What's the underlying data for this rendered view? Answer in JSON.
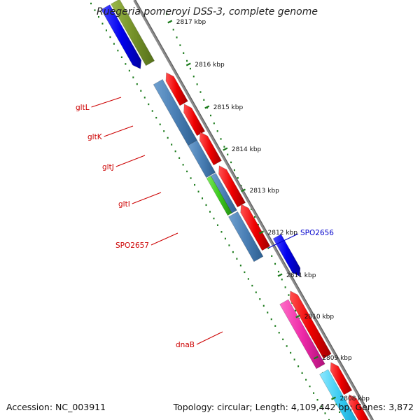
{
  "title": "Ruegeria pomeroyi DSS-3, complete genome",
  "footer": {
    "accession": "Accession: NC_003911",
    "summary": "Topology: circular; Length: 4,109,442 bp; Genes: 3,872"
  },
  "colors": {
    "backbone": "#7f7f7f",
    "tick": "#1a7a1a",
    "reverse_label": "#cc0000",
    "forward_label": "#0000cc"
  },
  "scale_ticks": [
    "2817 kbp",
    "2816 kbp",
    "2815 kbp",
    "2814 kbp",
    "2813 kbp",
    "2812 kbp",
    "2811 kbp",
    "2810 kbp",
    "2809 kbp",
    "2808 kbp"
  ],
  "genes": [
    {
      "name": "gltL",
      "color": "#cc0000",
      "strand": "reverse"
    },
    {
      "name": "gltK",
      "color": "#cc0000",
      "strand": "reverse"
    },
    {
      "name": "gltJ",
      "color": "#cc0000",
      "strand": "reverse"
    },
    {
      "name": "gltI",
      "color": "#cc0000",
      "strand": "reverse"
    },
    {
      "name": "SPO2657",
      "color": "#cc0000",
      "strand": "reverse"
    },
    {
      "name": "dnaB",
      "color": "#cc0000",
      "strand": "reverse"
    },
    {
      "name": "SPO2656",
      "color": "#0000cc",
      "strand": "forward"
    }
  ]
}
